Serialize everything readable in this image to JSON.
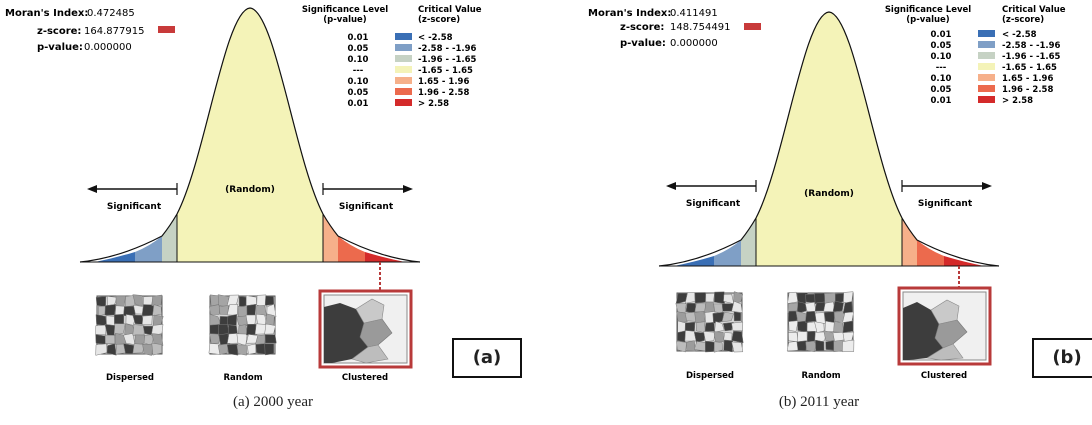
{
  "colors": {
    "blue_dark": "#3a6fb5",
    "blue_mid": "#7f9fc6",
    "blue_light": "#c6d2c4",
    "random": "#f4f3b8",
    "red_light": "#f6b08a",
    "red_mid": "#ec6a4d",
    "red_dark": "#d42a2a",
    "zscore_box": "#c83a3a",
    "map_border": "#b83a3a"
  },
  "legend": {
    "sig_header_1": "Significance Level",
    "sig_header_2": "(p-value)",
    "crit_header_1": "Critical Value",
    "crit_header_2": "(z-score)",
    "rows": [
      {
        "p": "0.01",
        "z": "< -2.58",
        "color": "#3a6fb5"
      },
      {
        "p": "0.05",
        "z": "-2.58 - -1.96",
        "color": "#7f9fc6"
      },
      {
        "p": "0.10",
        "z": "-1.96 - -1.65",
        "color": "#c6d2c4"
      },
      {
        "p": "---",
        "z": "-1.65 - 1.65",
        "color": "#f4f3b8"
      },
      {
        "p": "0.10",
        "z": "1.65 - 1.96",
        "color": "#f6b08a"
      },
      {
        "p": "0.05",
        "z": "1.96 - 2.58",
        "color": "#ec6a4d"
      },
      {
        "p": "0.01",
        "z": "> 2.58",
        "color": "#d42a2a"
      }
    ]
  },
  "labels": {
    "random": "(Random)",
    "significant_left": "Significant",
    "significant_right": "Significant",
    "dispersed": "Dispersed",
    "random_map": "Random",
    "clustered": "Clustered"
  },
  "panels": [
    {
      "id": "a",
      "stats": {
        "moran_label": "Moran's Index:",
        "moran_value": "0.472485",
        "z_label": "z-score:",
        "z_value": "164.877915",
        "p_label": "p-value:",
        "p_value": "0.000000"
      },
      "tag": "(a)",
      "caption": "(a) 2000 year"
    },
    {
      "id": "b",
      "stats": {
        "moran_label": "Moran's Index:",
        "moran_value": "0.411491",
        "z_label": "z-score:",
        "z_value": "148.754491",
        "p_label": "p-value:",
        "p_value": "0.000000"
      },
      "tag": "(b)",
      "caption": "(b) 2011 year"
    }
  ]
}
